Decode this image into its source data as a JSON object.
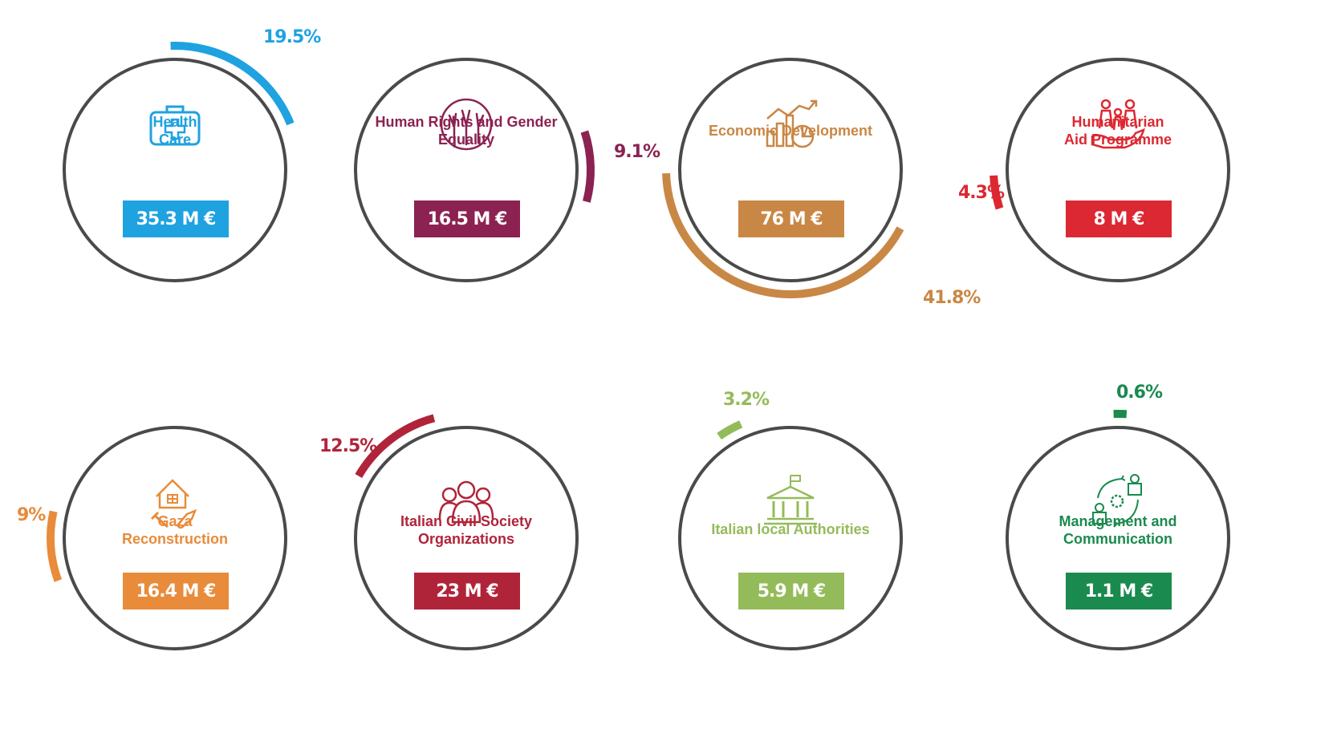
{
  "chart_data": {
    "type": "pie",
    "items": [
      {
        "label": "Health Care",
        "value_text": "35.3 M €",
        "value": 35.3,
        "share_text": "19.5%",
        "share": 19.5,
        "color": "#1ea2e0",
        "icon": "first-aid-kit-icon"
      },
      {
        "label": "Human Rights and Gender Equality",
        "value_text": "16.5 M €",
        "value": 16.5,
        "share_text": "9.1%",
        "share": 9.1,
        "color": "#8b2252",
        "icon": "raised-hands-icon"
      },
      {
        "label": "Economic Development",
        "value_text": "76 M €",
        "value": 76,
        "share_text": "41.8%",
        "share": 41.8,
        "color": "#c98745",
        "icon": "growth-chart-icon"
      },
      {
        "label": "Humanitarian Aid Programme",
        "value_text": "8 M €",
        "value": 8,
        "share_text": "4.3%",
        "share": 4.3,
        "color": "#dc2832",
        "icon": "family-in-hand-icon"
      },
      {
        "label": "Gaza Reconstruction",
        "value_text": "16.4 M €",
        "value": 16.4,
        "share_text": "9%",
        "share": 9,
        "color": "#e88b3a",
        "icon": "house-tools-icon"
      },
      {
        "label": "Italian Civil Society Organizations",
        "value_text": "23 M €",
        "value": 23,
        "share_text": "12.5%",
        "share": 12.5,
        "color": "#b0243a",
        "icon": "people-group-icon"
      },
      {
        "label": "Italian local Authorities",
        "value_text": "5.9 M €",
        "value": 5.9,
        "share_text": "3.2%",
        "share": 3.2,
        "color": "#94bb5a",
        "icon": "government-building-icon"
      },
      {
        "label": "Management and Communication",
        "value_text": "1.1 M €",
        "value": 1.1,
        "share_text": "0.6%",
        "share": 0.6,
        "color": "#1a8a4e",
        "icon": "management-cycle-icon"
      }
    ]
  },
  "display_lines": [
    [
      "Health",
      "Care"
    ],
    [
      "Human Rights and Gender",
      "Equality"
    ],
    [
      "Economic Development"
    ],
    [
      "Humanitarian",
      "Aid Programme"
    ],
    [
      "Gaza",
      "Reconstruction"
    ],
    [
      "Italian Civil Society",
      "Organizations"
    ],
    [
      "Italian local Authorities"
    ],
    [
      "Management and",
      "Communication"
    ]
  ]
}
